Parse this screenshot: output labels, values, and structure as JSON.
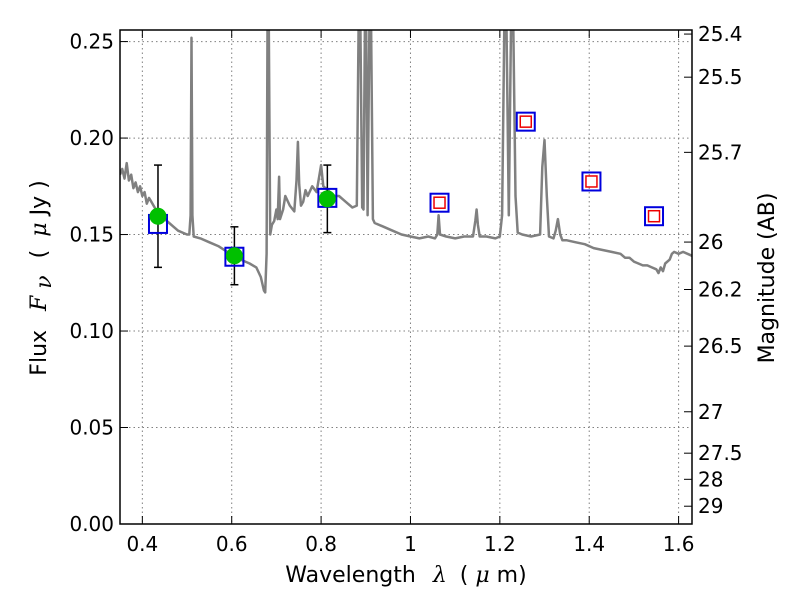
{
  "chart_data": {
    "type": "scatter",
    "xlabel_parts": {
      "text": "Wavelength",
      "symbol": "λ",
      "unit_open": "(",
      "unit_mu": "μ",
      "unit_rest": "m)"
    },
    "ylabel_parts": {
      "text": "Flux",
      "symbol": "F",
      "sub": "ν",
      "open": "(",
      "mu": "μ",
      "rest": "Jy )"
    },
    "y2label": "Magnitude (AB)",
    "xlim": [
      0.35,
      1.63
    ],
    "ylim": [
      0.0,
      0.256
    ],
    "grid": true,
    "x_ticks": [
      0.4,
      0.6,
      0.8,
      1.0,
      1.2,
      1.4,
      1.6
    ],
    "x_tick_labels": [
      "0.4",
      "0.6",
      "0.8",
      "1",
      "1.2",
      "1.4",
      "1.6"
    ],
    "y_ticks": [
      0.0,
      0.05,
      0.1,
      0.15,
      0.2,
      0.25
    ],
    "y_tick_labels": [
      "0.00",
      "0.05",
      "0.10",
      "0.15",
      "0.20",
      "0.25"
    ],
    "mag_ticks": [
      25.4,
      25.5,
      25.7,
      26,
      26.2,
      26.5,
      27,
      27.5,
      28,
      29
    ],
    "mag_tick_labels": [
      "25.4",
      "25.5",
      "25.7",
      "26",
      "26.2",
      "26.5",
      "27",
      "27.5",
      "28",
      "29"
    ],
    "colors": {
      "spectrum": "#808080",
      "measured": "#00c000",
      "model_box": "#0000dd",
      "upper": "#ee0000",
      "errorbar": "#000000",
      "grid": "#808080"
    },
    "measured_points": [
      {
        "x": 0.435,
        "y": 0.1595,
        "err": 0.0265
      },
      {
        "x": 0.606,
        "y": 0.139,
        "err": 0.015
      },
      {
        "x": 0.814,
        "y": 0.1685,
        "err": 0.0175
      }
    ],
    "model_points": [
      {
        "x": 0.435,
        "y": 0.1555
      },
      {
        "x": 0.606,
        "y": 0.1385
      },
      {
        "x": 0.814,
        "y": 0.169
      },
      {
        "x": 1.065,
        "y": 0.1665
      },
      {
        "x": 1.258,
        "y": 0.2085
      },
      {
        "x": 1.405,
        "y": 0.1775
      },
      {
        "x": 1.545,
        "y": 0.1595
      }
    ],
    "nir_points": [
      {
        "x": 1.065,
        "y": 0.1665
      },
      {
        "x": 1.258,
        "y": 0.2085
      },
      {
        "x": 1.405,
        "y": 0.1775
      },
      {
        "x": 1.545,
        "y": 0.1595
      }
    ],
    "spectrum": [
      [
        0.35,
        0.181
      ],
      [
        0.355,
        0.184
      ],
      [
        0.36,
        0.179
      ],
      [
        0.365,
        0.187
      ],
      [
        0.37,
        0.178
      ],
      [
        0.375,
        0.181
      ],
      [
        0.38,
        0.174
      ],
      [
        0.385,
        0.177
      ],
      [
        0.39,
        0.172
      ],
      [
        0.395,
        0.175
      ],
      [
        0.4,
        0.17
      ],
      [
        0.405,
        0.172
      ],
      [
        0.41,
        0.166
      ],
      [
        0.415,
        0.169
      ],
      [
        0.42,
        0.167
      ],
      [
        0.43,
        0.163
      ],
      [
        0.44,
        0.16
      ],
      [
        0.45,
        0.158
      ],
      [
        0.46,
        0.156
      ],
      [
        0.47,
        0.154
      ],
      [
        0.48,
        0.152
      ],
      [
        0.49,
        0.151
      ],
      [
        0.5,
        0.15
      ],
      [
        0.505,
        0.15
      ],
      [
        0.508,
        0.16
      ],
      [
        0.51,
        0.252
      ],
      [
        0.512,
        0.16
      ],
      [
        0.515,
        0.149
      ],
      [
        0.53,
        0.148
      ],
      [
        0.55,
        0.146
      ],
      [
        0.57,
        0.144
      ],
      [
        0.59,
        0.141
      ],
      [
        0.6,
        0.139
      ],
      [
        0.62,
        0.137
      ],
      [
        0.64,
        0.135
      ],
      [
        0.655,
        0.133
      ],
      [
        0.665,
        0.128
      ],
      [
        0.672,
        0.121
      ],
      [
        0.675,
        0.12
      ],
      [
        0.678,
        0.14
      ],
      [
        0.68,
        0.258
      ],
      [
        0.683,
        0.258
      ],
      [
        0.686,
        0.15
      ],
      [
        0.69,
        0.155
      ],
      [
        0.695,
        0.157
      ],
      [
        0.7,
        0.163
      ],
      [
        0.703,
        0.158
      ],
      [
        0.706,
        0.18
      ],
      [
        0.708,
        0.158
      ],
      [
        0.715,
        0.163
      ],
      [
        0.72,
        0.17
      ],
      [
        0.73,
        0.165
      ],
      [
        0.74,
        0.162
      ],
      [
        0.745,
        0.178
      ],
      [
        0.748,
        0.198
      ],
      [
        0.751,
        0.176
      ],
      [
        0.755,
        0.165
      ],
      [
        0.76,
        0.167
      ],
      [
        0.765,
        0.173
      ],
      [
        0.77,
        0.17
      ],
      [
        0.78,
        0.175
      ],
      [
        0.79,
        0.172
      ],
      [
        0.8,
        0.186
      ],
      [
        0.805,
        0.175
      ],
      [
        0.81,
        0.174
      ],
      [
        0.82,
        0.172
      ],
      [
        0.83,
        0.17
      ],
      [
        0.84,
        0.17
      ],
      [
        0.85,
        0.168
      ],
      [
        0.86,
        0.166
      ],
      [
        0.87,
        0.164
      ],
      [
        0.88,
        0.165
      ],
      [
        0.884,
        0.258
      ],
      [
        0.888,
        0.258
      ],
      [
        0.892,
        0.164
      ],
      [
        0.895,
        0.163
      ],
      [
        0.898,
        0.258
      ],
      [
        0.901,
        0.258
      ],
      [
        0.904,
        0.16
      ],
      [
        0.908,
        0.258
      ],
      [
        0.912,
        0.258
      ],
      [
        0.916,
        0.158
      ],
      [
        0.92,
        0.156
      ],
      [
        0.94,
        0.154
      ],
      [
        0.96,
        0.152
      ],
      [
        0.98,
        0.15
      ],
      [
        1.0,
        0.149
      ],
      [
        1.02,
        0.148
      ],
      [
        1.04,
        0.149
      ],
      [
        1.055,
        0.148
      ],
      [
        1.06,
        0.15
      ],
      [
        1.063,
        0.16
      ],
      [
        1.066,
        0.15
      ],
      [
        1.08,
        0.149
      ],
      [
        1.1,
        0.148
      ],
      [
        1.12,
        0.149
      ],
      [
        1.14,
        0.149
      ],
      [
        1.145,
        0.157
      ],
      [
        1.148,
        0.163
      ],
      [
        1.151,
        0.155
      ],
      [
        1.155,
        0.149
      ],
      [
        1.17,
        0.149
      ],
      [
        1.19,
        0.148
      ],
      [
        1.2,
        0.149
      ],
      [
        1.205,
        0.16
      ],
      [
        1.21,
        0.258
      ],
      [
        1.215,
        0.258
      ],
      [
        1.22,
        0.16
      ],
      [
        1.225,
        0.258
      ],
      [
        1.23,
        0.258
      ],
      [
        1.235,
        0.17
      ],
      [
        1.24,
        0.151
      ],
      [
        1.25,
        0.15
      ],
      [
        1.27,
        0.149
      ],
      [
        1.29,
        0.15
      ],
      [
        1.295,
        0.185
      ],
      [
        1.3,
        0.199
      ],
      [
        1.305,
        0.17
      ],
      [
        1.31,
        0.149
      ],
      [
        1.32,
        0.148
      ],
      [
        1.325,
        0.152
      ],
      [
        1.33,
        0.158
      ],
      [
        1.335,
        0.15
      ],
      [
        1.34,
        0.147
      ],
      [
        1.35,
        0.147
      ],
      [
        1.37,
        0.146
      ],
      [
        1.39,
        0.145
      ],
      [
        1.41,
        0.143
      ],
      [
        1.43,
        0.142
      ],
      [
        1.45,
        0.141
      ],
      [
        1.47,
        0.14
      ],
      [
        1.48,
        0.138
      ],
      [
        1.49,
        0.138
      ],
      [
        1.5,
        0.136
      ],
      [
        1.51,
        0.135
      ],
      [
        1.52,
        0.134
      ],
      [
        1.53,
        0.134
      ],
      [
        1.54,
        0.133
      ],
      [
        1.55,
        0.132
      ],
      [
        1.555,
        0.13
      ],
      [
        1.56,
        0.133
      ],
      [
        1.565,
        0.131
      ],
      [
        1.57,
        0.135
      ],
      [
        1.58,
        0.137
      ],
      [
        1.585,
        0.14
      ],
      [
        1.59,
        0.141
      ],
      [
        1.6,
        0.14
      ],
      [
        1.61,
        0.141
      ],
      [
        1.62,
        0.14
      ],
      [
        1.63,
        0.139
      ]
    ]
  }
}
